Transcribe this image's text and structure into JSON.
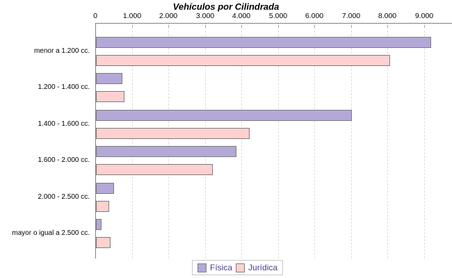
{
  "chart_data": {
    "type": "bar",
    "orientation": "horizontal",
    "title": "Vehículos por Cilindrada",
    "categories": [
      "menor a 1.200 cc.",
      "1.200 - 1.400 cc.",
      "1.400 - 1.600 cc.",
      "1.600 - 2.000 cc.",
      "2.000 - 2.500 cc.",
      "mayor o igual a 2.500 cc."
    ],
    "series": [
      {
        "name": "Física",
        "color": "#b3a8d7",
        "values": [
          9150,
          680,
          6980,
          3810,
          460,
          110
        ]
      },
      {
        "name": "Jurídica",
        "color": "#ffd0d0",
        "values": [
          8020,
          740,
          4170,
          3160,
          320,
          370
        ]
      }
    ],
    "x_ticks": [
      "0",
      "1.000",
      "2.000",
      "3.000",
      "4.000",
      "5.000",
      "6.000",
      "7.000",
      "8.000",
      "9.000"
    ],
    "x_tick_values": [
      0,
      1000,
      2000,
      3000,
      4000,
      5000,
      6000,
      7000,
      8000,
      9000
    ],
    "xlim": [
      0,
      9780
    ],
    "grid": "dashed-vertical",
    "axis_position": "top",
    "legend_position": "bottom",
    "colors": {
      "bar_border": "#7d7d7d",
      "axis": "#808080",
      "gridline": "#dcdcdc",
      "legend_text": "#483d8b",
      "title_text": "#000000"
    }
  }
}
